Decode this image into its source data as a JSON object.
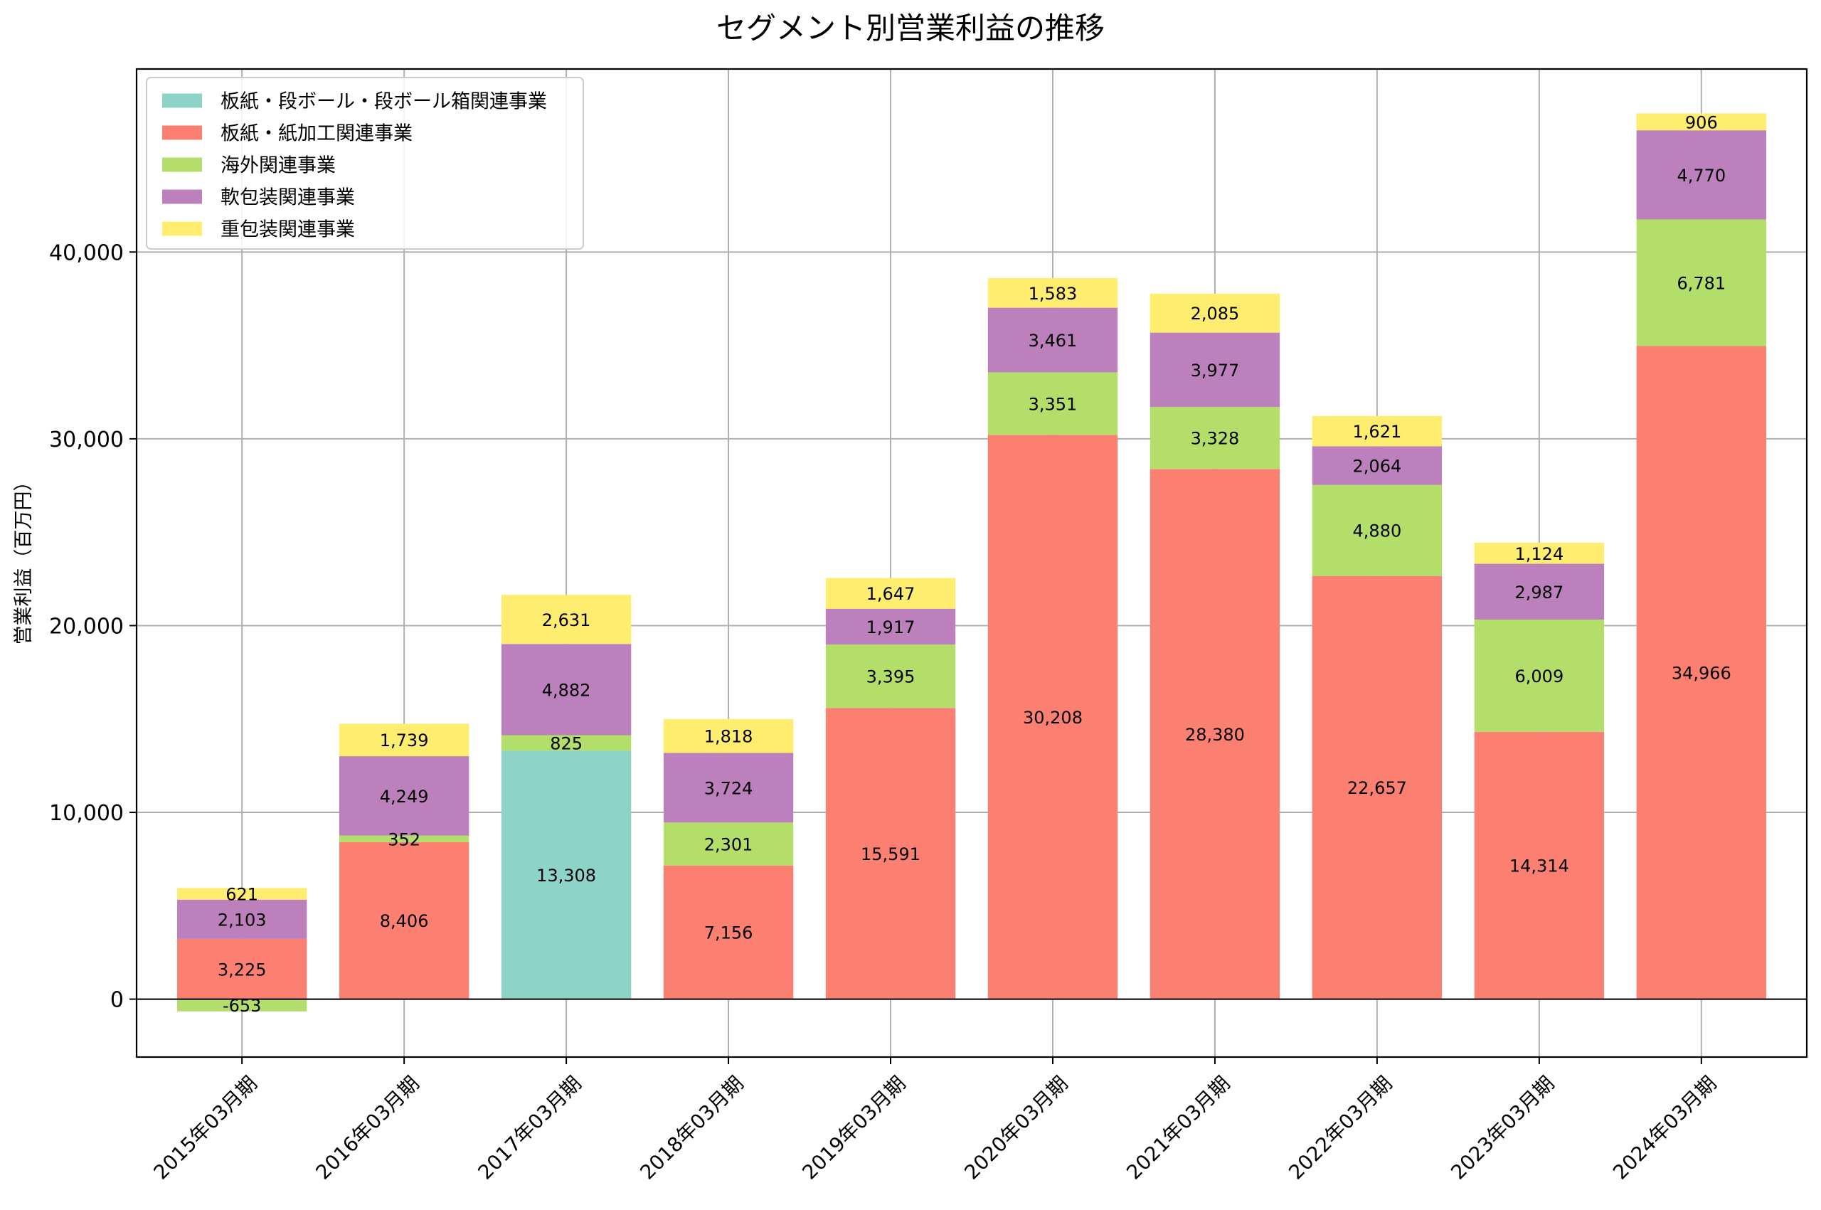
{
  "chart_data": {
    "type": "bar",
    "stacked": true,
    "title": "セグメント別営業利益の推移",
    "xlabel": "",
    "ylabel": "営業利益（百万円）",
    "ylim": [
      -3100,
      49800
    ],
    "yticks": [
      0,
      10000,
      20000,
      30000,
      40000
    ],
    "ytick_labels": [
      "0",
      "10,000",
      "20,000",
      "30,000",
      "40,000"
    ],
    "grid": true,
    "legend_position": "top-left",
    "categories": [
      "2015年03月期",
      "2016年03月期",
      "2017年03月期",
      "2018年03月期",
      "2019年03月期",
      "2020年03月期",
      "2021年03月期",
      "2022年03月期",
      "2023年03月期",
      "2024年03月期"
    ],
    "series": [
      {
        "name": "板紙・段ボール・段ボール箱関連事業",
        "color": "#8dd3c7",
        "values": [
          null,
          null,
          13308,
          null,
          null,
          null,
          null,
          null,
          null,
          null
        ],
        "labels": [
          "",
          "",
          "13,308",
          "",
          "",
          "",
          "",
          "",
          "",
          ""
        ]
      },
      {
        "name": "板紙・紙加工関連事業",
        "color": "#fb8072",
        "values": [
          3225,
          8406,
          null,
          7156,
          15591,
          30208,
          28380,
          22657,
          14314,
          34966
        ],
        "labels": [
          "3,225",
          "8,406",
          "",
          "7,156",
          "15,591",
          "30,208",
          "28,380",
          "22,657",
          "14,314",
          "34,966"
        ]
      },
      {
        "name": "海外関連事業",
        "color": "#b3de69",
        "values": [
          -653,
          352,
          825,
          2301,
          3395,
          3351,
          3328,
          4880,
          6009,
          6781
        ],
        "labels": [
          "-653",
          "352",
          "825",
          "2,301",
          "3,395",
          "3,351",
          "3,328",
          "4,880",
          "6,009",
          "6,781"
        ]
      },
      {
        "name": "軟包装関連事業",
        "color": "#bc80bd",
        "values": [
          2103,
          4249,
          4882,
          3724,
          1917,
          3461,
          3977,
          2064,
          2987,
          4770
        ],
        "labels": [
          "2,103",
          "4,249",
          "4,882",
          "3,724",
          "1,917",
          "3,461",
          "3,977",
          "2,064",
          "2,987",
          "4,770"
        ]
      },
      {
        "name": "重包装関連事業",
        "color": "#ffed6f",
        "values": [
          621,
          1739,
          2631,
          1818,
          1647,
          1583,
          2085,
          1621,
          1124,
          906
        ],
        "labels": [
          "621",
          "1,739",
          "2,631",
          "1,818",
          "1,647",
          "1,583",
          "2,085",
          "1,621",
          "1,124",
          "906"
        ]
      }
    ]
  }
}
